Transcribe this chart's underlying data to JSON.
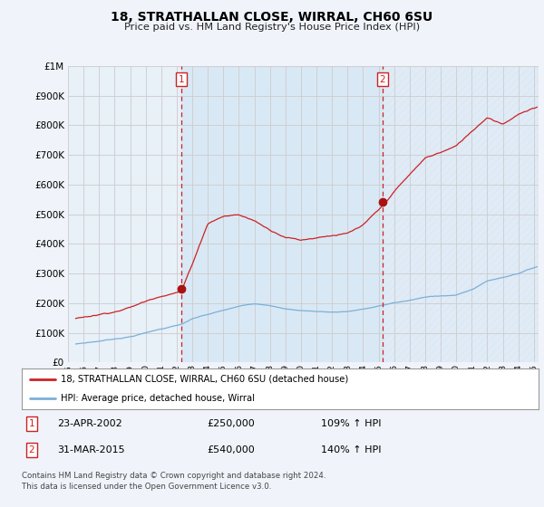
{
  "title": "18, STRATHALLAN CLOSE, WIRRAL, CH60 6SU",
  "subtitle": "Price paid vs. HM Land Registry's House Price Index (HPI)",
  "legend_label_red": "18, STRATHALLAN CLOSE, WIRRAL, CH60 6SU (detached house)",
  "legend_label_blue": "HPI: Average price, detached house, Wirral",
  "footnote1": "Contains HM Land Registry data © Crown copyright and database right 2024.",
  "footnote2": "This data is licensed under the Open Government Licence v3.0.",
  "sale1_date": "23-APR-2002",
  "sale1_price": 250000,
  "sale1_hpi": "109% ↑ HPI",
  "sale1_year": 2002.31,
  "sale2_date": "31-MAR-2015",
  "sale2_price": 540000,
  "sale2_hpi": "140% ↑ HPI",
  "sale2_year": 2015.25,
  "ylim": [
    0,
    1000000
  ],
  "xlim_start": 1995.5,
  "xlim_end": 2025.3,
  "background_color": "#f0f4fa",
  "plot_bg": "#e8f0f8",
  "hatch_color": "#c8d8e8",
  "grid_color": "#cccccc",
  "red_line_color": "#cc2222",
  "blue_line_color": "#7ab0d8"
}
